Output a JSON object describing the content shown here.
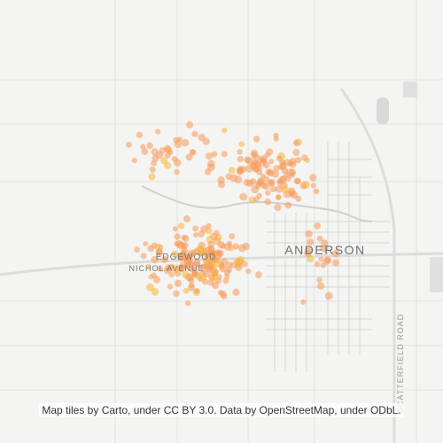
{
  "map": {
    "labels": {
      "city": "ANDERSON",
      "neighborhood": "EDGEWOOD",
      "street": "NICHOL AVENUE",
      "road": "SCATTERFIELD ROAD"
    },
    "attribution": "Map tiles by Carto, under CC BY 3.0. Data by OpenStreetMap, under ODbL."
  }
}
